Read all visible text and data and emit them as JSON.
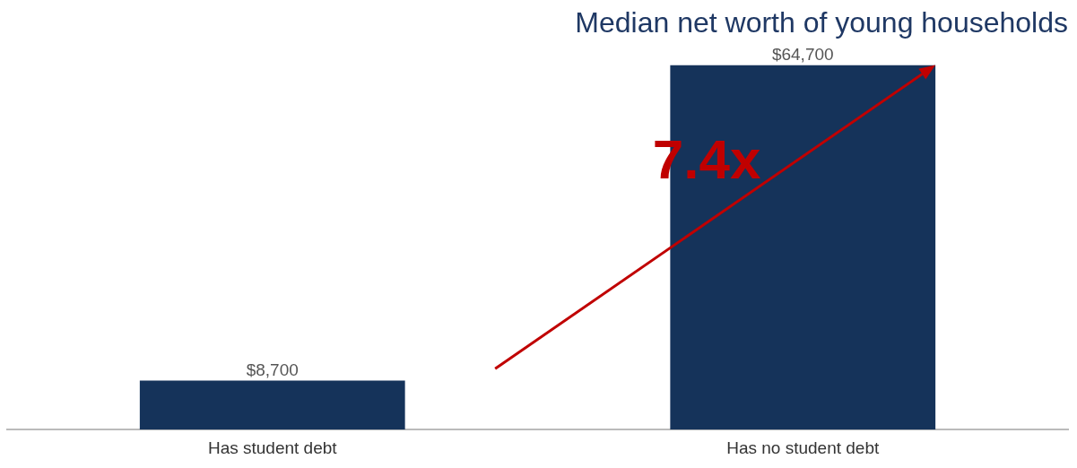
{
  "chart_data": {
    "type": "bar",
    "title": "Median net worth of young households",
    "categories": [
      "Has student debt",
      "Has no student debt"
    ],
    "values": [
      8700,
      64700
    ],
    "color": "#15335a",
    "value_labels": [
      "$8,700",
      "$64,700"
    ],
    "annotations": [
      "7.4x"
    ],
    "tick_labels": "x",
    "grid": false,
    "legend": false
  }
}
